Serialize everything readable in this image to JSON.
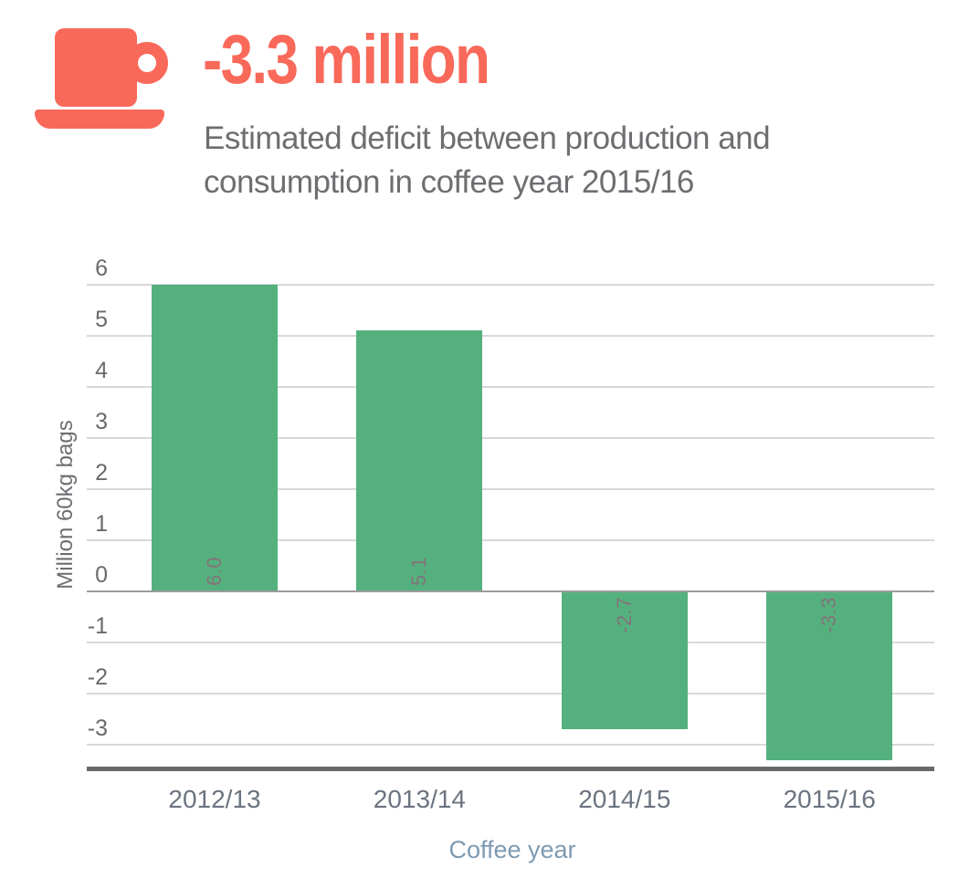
{
  "header": {
    "title": "-3.3 million",
    "subtitle_lines": [
      "Estimated deficit between production and",
      "consumption in coffee year 2015/16"
    ]
  },
  "chart_data": {
    "type": "bar",
    "title": "Estimated deficit between production and consumption in coffee year 2015/16",
    "categories": [
      "2012/13",
      "2013/14",
      "2014/15",
      "2015/16"
    ],
    "values": [
      6.0,
      5.1,
      -2.7,
      -3.3
    ],
    "value_labels": [
      "6.0",
      "5.1",
      "-2.7",
      "-3.3"
    ],
    "xlabel": "Coffee year",
    "ylabel": "Million 60kg bags",
    "yticks": [
      6,
      5,
      4,
      3,
      2,
      1,
      0,
      -1,
      -2,
      -3
    ],
    "ylim": [
      -3.6,
      6.0
    ],
    "grid": true,
    "legend": false
  },
  "icons": {
    "coffee_cup": "coffee-cup-on-saucer-icon"
  },
  "colors": {
    "accent": "#f9695a",
    "bar_green": "#54b17e",
    "heading_gray": "#6d6e71",
    "tick_gray": "#696a6e",
    "category_gray": "#6b7480",
    "axis_title_blue_gray": "#7e9ab1",
    "value_label": "#84737a",
    "gridline": "#d8d8d8",
    "zero_line": "#9c9c9c",
    "axis_line": "#68696b"
  }
}
